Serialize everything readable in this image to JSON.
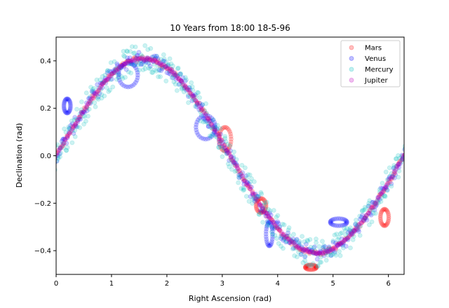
{
  "chart_data": {
    "type": "scatter",
    "title": "10 Years from  18:00 18-5-96",
    "xlabel": "Right Ascension (rad)",
    "ylabel": "Declination (rad)",
    "xlim": [
      0,
      6.283
    ],
    "ylim": [
      -0.5,
      0.5
    ],
    "xticks": [
      0,
      1,
      2,
      3,
      4,
      5,
      6
    ],
    "xtick_labels": [
      "0",
      "1",
      "2",
      "3",
      "4",
      "5",
      "6"
    ],
    "yticks": [
      -0.4,
      -0.2,
      0.0,
      0.2,
      0.4
    ],
    "ytick_labels": [
      "−0.4",
      "−0.2",
      "0.0",
      "0.2",
      "0.4"
    ],
    "grid": false,
    "legend_position": "top-right",
    "obliquity": 0.409,
    "series": [
      {
        "name": "Mars",
        "color": "#ff0000",
        "alpha": 0.2,
        "base_points": 260,
        "scatter": 0.01,
        "retrograde_loops": [
          {
            "ra": 3.05,
            "dec": 0.07,
            "width": 0.22,
            "height": 0.1
          },
          {
            "ra": 3.7,
            "dec": -0.21,
            "width": 0.18,
            "height": 0.06
          },
          {
            "ra": 4.6,
            "dec": -0.47,
            "width": 0.2,
            "height": 0.02
          },
          {
            "ra": 5.93,
            "dec": -0.26,
            "width": 0.15,
            "height": 0.07
          }
        ]
      },
      {
        "name": "Venus",
        "color": "#0000ff",
        "alpha": 0.2,
        "base_points": 300,
        "scatter": 0.03,
        "retrograde_loops": [
          {
            "ra": 0.2,
            "dec": 0.21,
            "width": 0.12,
            "height": 0.06
          },
          {
            "ra": 1.3,
            "dec": 0.34,
            "width": 0.35,
            "height": 0.1
          },
          {
            "ra": 2.7,
            "dec": 0.12,
            "width": 0.35,
            "height": 0.1
          },
          {
            "ra": 3.85,
            "dec": -0.33,
            "width": 0.12,
            "height": 0.1
          },
          {
            "ra": 5.1,
            "dec": -0.28,
            "width": 0.3,
            "height": 0.03
          }
        ]
      },
      {
        "name": "Mercury",
        "color": "#00bfbf",
        "alpha": 0.2,
        "base_points": 420,
        "scatter": 0.06,
        "retrograde_loops": []
      },
      {
        "name": "Jupiter",
        "color": "#bf00bf",
        "alpha": 0.2,
        "base_points": 340,
        "scatter": 0.004,
        "retrograde_loops": []
      }
    ]
  }
}
